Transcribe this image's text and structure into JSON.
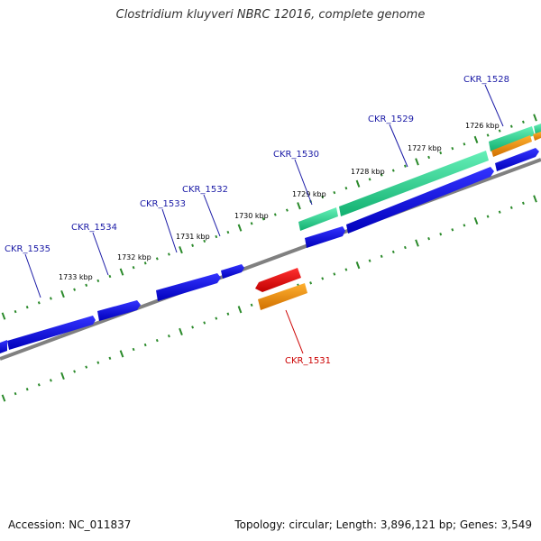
{
  "title": "Clostridium kluyveri NBRC 12016, complete genome",
  "footer": {
    "accession": "Accession: NC_011837",
    "stats": "Topology: circular; Length: 3,896,121 bp; Genes: 3,549"
  },
  "colors": {
    "backbone": "#808080",
    "forward_gene": "#0000dd",
    "cds_green": "#22cc88",
    "cds_orange": "#ee8800",
    "cds_red": "#dd0000",
    "tick": "#2b8a2b",
    "label_blue": "#1a1aa6",
    "label_red": "#cc0000"
  },
  "kbp_labels": [
    "1726 kbp",
    "1727 kbp",
    "1728 kbp",
    "1729 kbp",
    "1730 kbp",
    "1731 kbp",
    "1732 kbp",
    "1733 kbp"
  ],
  "gene_labels": [
    {
      "text": "CKR_1528",
      "color": "blue"
    },
    {
      "text": "CKR_1529",
      "color": "blue"
    },
    {
      "text": "CKR_1530",
      "color": "blue"
    },
    {
      "text": "CKR_1531",
      "color": "red"
    },
    {
      "text": "CKR_1532",
      "color": "blue"
    },
    {
      "text": "CKR_1533",
      "color": "blue"
    },
    {
      "text": "CKR_1534",
      "color": "blue"
    },
    {
      "text": "CKR_1535",
      "color": "blue"
    }
  ]
}
